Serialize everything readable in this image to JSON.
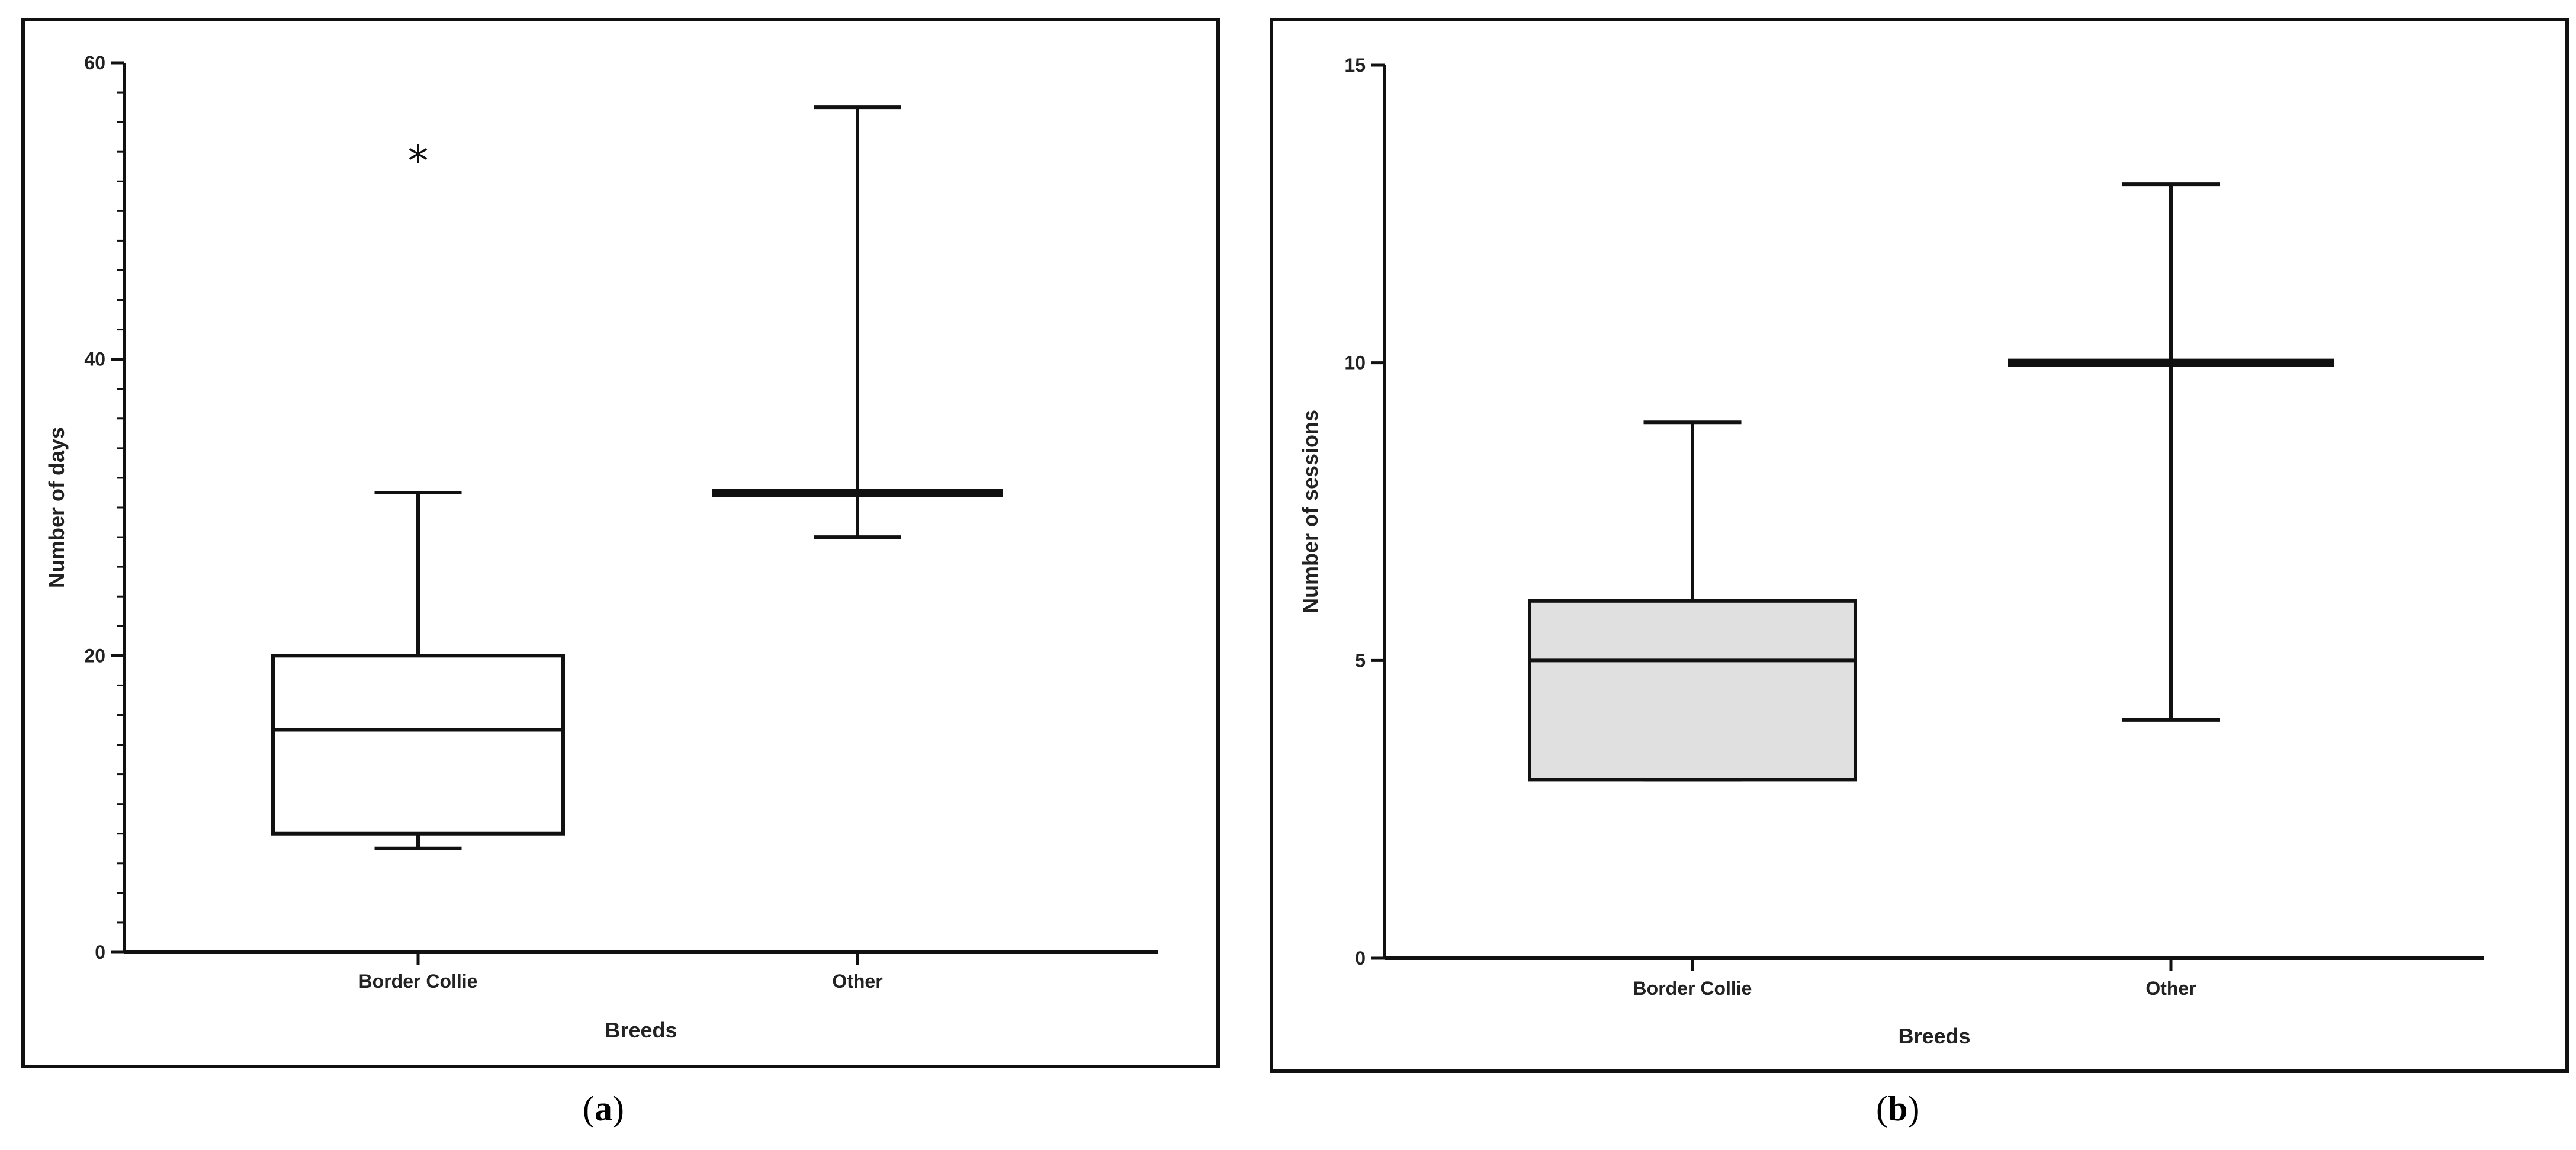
{
  "figure": {
    "captions": {
      "a_open": "(",
      "a_letter": "a",
      "a_close": ")",
      "b_open": "(",
      "b_letter": "b",
      "b_close": ")"
    }
  },
  "chart_data": [
    {
      "id": "a",
      "type": "box",
      "xlabel": "Breeds",
      "ylabel": "Number of days",
      "ylim": [
        0,
        60
      ],
      "yticks": [
        0,
        20,
        40,
        60
      ],
      "categories": [
        "Border Collie",
        "Other"
      ],
      "boxes": [
        {
          "category": "Border Collie",
          "min": 7,
          "q1": 8,
          "median": 15,
          "q3": 20,
          "max": 31,
          "outliers": [
            54
          ],
          "outlier_marker": "*"
        },
        {
          "category": "Other",
          "min": 28,
          "q1": 31,
          "median": 31,
          "q3": 31,
          "max": 57,
          "outliers": []
        }
      ],
      "box_fill": "#ffffff"
    },
    {
      "id": "b",
      "type": "box",
      "xlabel": "Breeds",
      "ylabel": "Number of sessions",
      "ylim": [
        0,
        15
      ],
      "yticks": [
        0,
        5,
        10,
        15
      ],
      "categories": [
        "Border Collie",
        "Other"
      ],
      "boxes": [
        {
          "category": "Border Collie",
          "min": 3,
          "q1": 3,
          "median": 5,
          "q3": 6,
          "max": 9,
          "outliers": []
        },
        {
          "category": "Other",
          "min": 4,
          "q1": 10,
          "median": 10,
          "q3": 10,
          "max": 13,
          "outliers": []
        }
      ],
      "box_fill": "#e0e0e0"
    }
  ]
}
